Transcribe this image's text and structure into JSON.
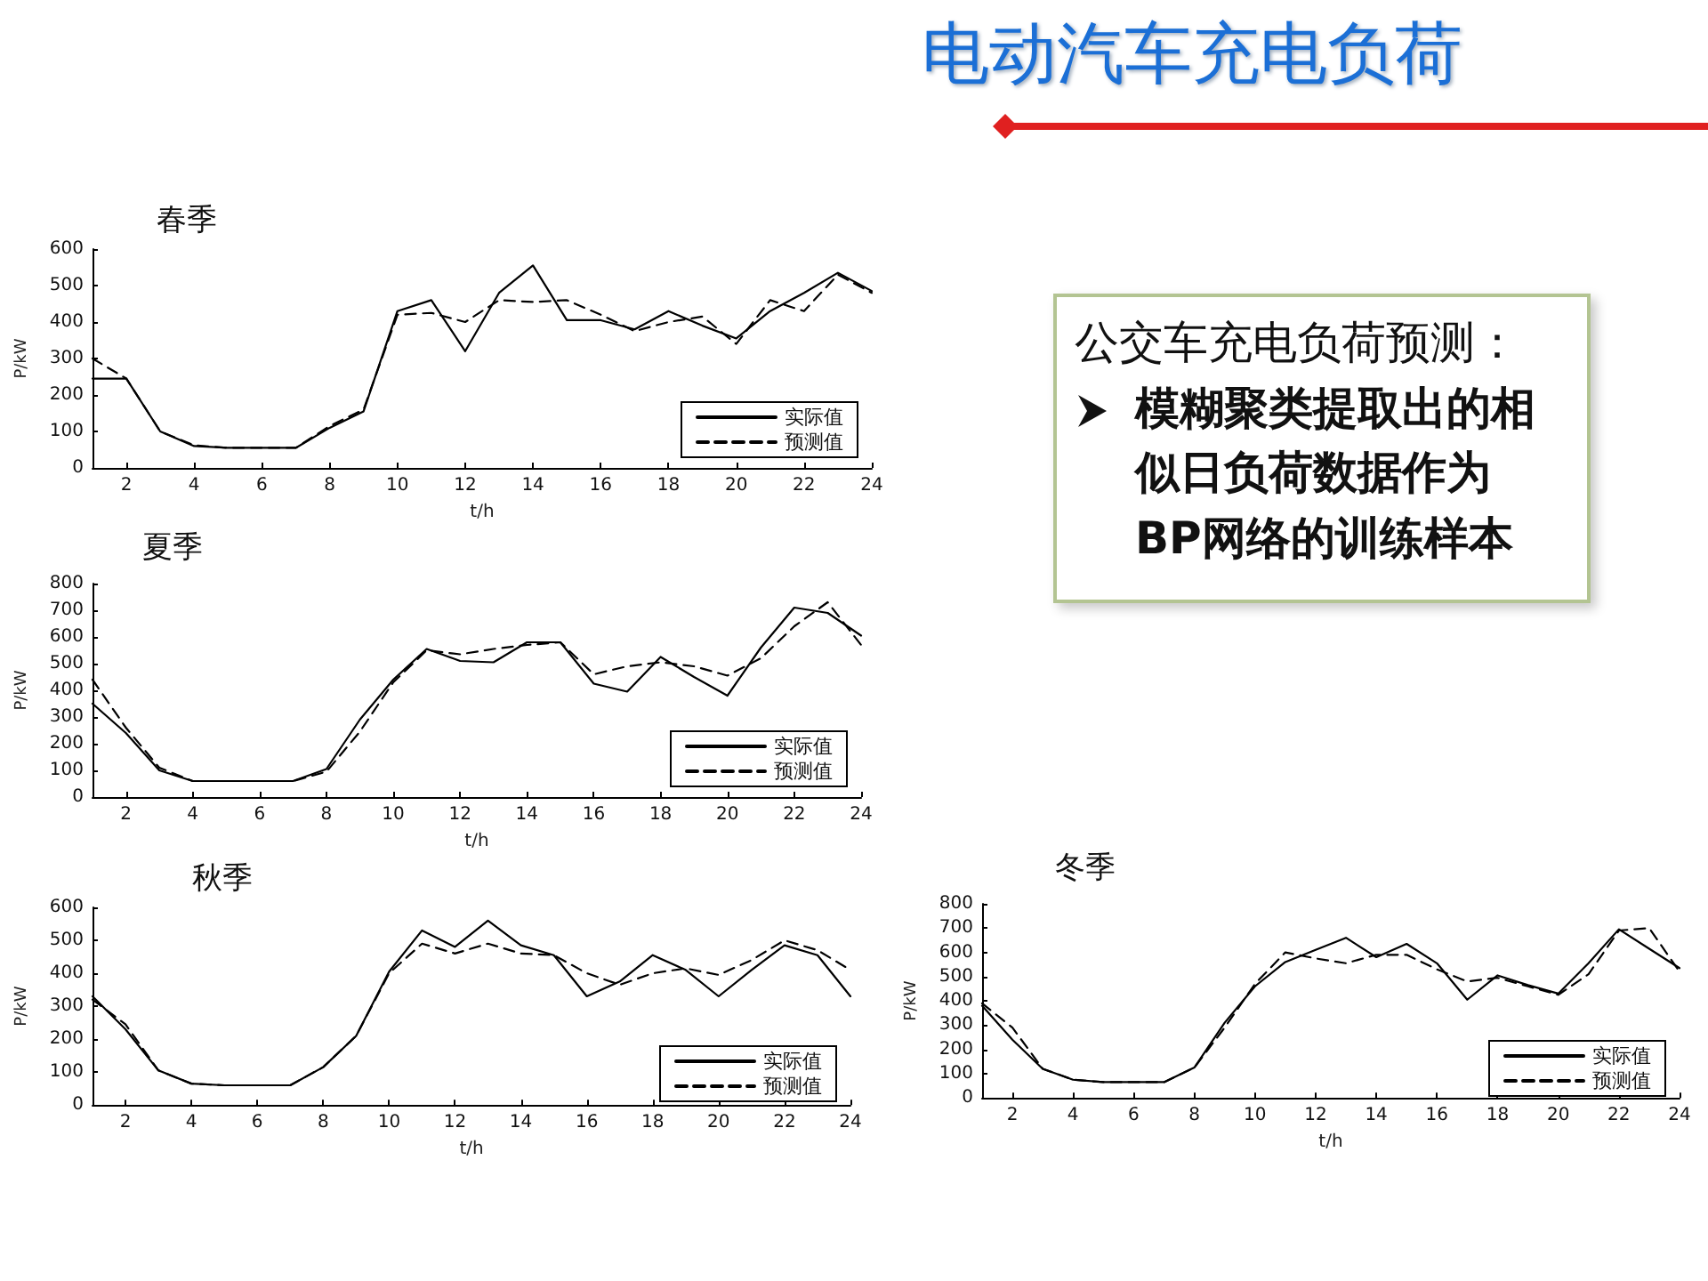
{
  "chart_data": [
    {
      "type": "other",
      "title": "电动汽车充电负荷"
    },
    {
      "type": "line",
      "title": "春季",
      "xlabel": "t/h",
      "ylabel": "P/kW",
      "x": [
        1,
        2,
        3,
        4,
        5,
        6,
        7,
        8,
        9,
        10,
        11,
        12,
        13,
        14,
        15,
        16,
        17,
        18,
        19,
        20,
        21,
        22,
        23,
        24
      ],
      "xlim": [
        1,
        24
      ],
      "xticks": [
        2,
        4,
        6,
        8,
        10,
        12,
        14,
        16,
        18,
        20,
        22,
        24
      ],
      "ylim": [
        0,
        600
      ],
      "yticks": [
        0,
        100,
        200,
        300,
        400,
        500,
        600
      ],
      "grid": false,
      "legend": "bottom right",
      "marker": "none",
      "series": [
        {
          "name": "实际值",
          "color": "#000000",
          "line_style": "solid",
          "values": [
            245,
            245,
            100,
            60,
            55,
            55,
            55,
            110,
            155,
            430,
            460,
            320,
            480,
            555,
            405,
            405,
            380,
            430,
            390,
            355,
            430,
            480,
            535,
            485
          ]
        },
        {
          "name": "预测值",
          "color": "#000000",
          "line_style": "dashed",
          "values": [
            300,
            245,
            100,
            62,
            55,
            55,
            55,
            115,
            160,
            420,
            425,
            400,
            460,
            455,
            460,
            420,
            375,
            400,
            415,
            340,
            460,
            430,
            530,
            480
          ]
        }
      ]
    },
    {
      "type": "other",
      "title": "公交车充电负荷预测：",
      "annotations": [
        "模糊聚类提取出的相似日负荷数据作为BP网络的训练样本"
      ]
    },
    {
      "type": "line",
      "title": "夏季",
      "xlabel": "t/h",
      "ylabel": "P/kW",
      "x": [
        1,
        2,
        3,
        4,
        5,
        6,
        7,
        8,
        9,
        10,
        11,
        12,
        13,
        14,
        15,
        16,
        17,
        18,
        19,
        20,
        21,
        22,
        23,
        24
      ],
      "xlim": [
        1,
        24
      ],
      "xticks": [
        2,
        4,
        6,
        8,
        10,
        12,
        14,
        16,
        18,
        20,
        22,
        24
      ],
      "ylim": [
        0,
        800
      ],
      "yticks": [
        0,
        100,
        200,
        300,
        400,
        500,
        600,
        700,
        800
      ],
      "grid": false,
      "legend": "bottom right",
      "marker": "none",
      "series": [
        {
          "name": "实际值",
          "color": "#000000",
          "line_style": "solid",
          "values": [
            350,
            240,
            100,
            60,
            60,
            60,
            60,
            105,
            290,
            440,
            555,
            510,
            505,
            580,
            580,
            425,
            395,
            525,
            450,
            380,
            560,
            710,
            690,
            605
          ]
        },
        {
          "name": "预测值",
          "color": "#000000",
          "line_style": "dashed",
          "values": [
            440,
            260,
            110,
            60,
            60,
            60,
            60,
            95,
            245,
            430,
            550,
            535,
            555,
            570,
            580,
            460,
            490,
            505,
            490,
            455,
            520,
            640,
            730,
            570
          ]
        }
      ]
    },
    {
      "type": "line",
      "title": "秋季",
      "xlabel": "t/h",
      "ylabel": "P/kW",
      "x": [
        1,
        2,
        3,
        4,
        5,
        6,
        7,
        8,
        9,
        10,
        11,
        12,
        13,
        14,
        15,
        16,
        17,
        18,
        19,
        20,
        21,
        22,
        23,
        24
      ],
      "xlim": [
        1,
        24
      ],
      "xticks": [
        2,
        4,
        6,
        8,
        10,
        12,
        14,
        16,
        18,
        20,
        22,
        24
      ],
      "ylim": [
        0,
        600
      ],
      "yticks": [
        0,
        100,
        200,
        300,
        400,
        500,
        600
      ],
      "grid": false,
      "legend": "bottom right",
      "marker": "none",
      "series": [
        {
          "name": "实际值",
          "color": "#000000",
          "line_style": "solid",
          "values": [
            330,
            230,
            105,
            65,
            60,
            60,
            60,
            115,
            210,
            405,
            530,
            480,
            560,
            485,
            455,
            330,
            375,
            455,
            410,
            330,
            410,
            485,
            455,
            330
          ]
        },
        {
          "name": "预测值",
          "color": "#000000",
          "line_style": "dashed",
          "values": [
            320,
            245,
            105,
            65,
            60,
            60,
            60,
            115,
            210,
            400,
            490,
            460,
            490,
            460,
            455,
            400,
            365,
            400,
            415,
            395,
            440,
            500,
            470,
            410
          ]
        }
      ]
    },
    {
      "type": "line",
      "title": "冬季",
      "xlabel": "t/h",
      "ylabel": "P/kW",
      "x": [
        1,
        2,
        3,
        4,
        5,
        6,
        7,
        8,
        9,
        10,
        11,
        12,
        13,
        14,
        15,
        16,
        17,
        18,
        19,
        20,
        21,
        22,
        23,
        24
      ],
      "xlim": [
        1,
        24
      ],
      "xticks": [
        2,
        4,
        6,
        8,
        10,
        12,
        14,
        16,
        18,
        20,
        22,
        24
      ],
      "ylim": [
        0,
        800
      ],
      "yticks": [
        0,
        100,
        200,
        300,
        400,
        500,
        600,
        700,
        800
      ],
      "grid": false,
      "legend": "bottom right",
      "marker": "none",
      "series": [
        {
          "name": "实际值",
          "color": "#000000",
          "line_style": "solid",
          "values": [
            380,
            240,
            120,
            75,
            65,
            65,
            65,
            125,
            310,
            460,
            560,
            610,
            660,
            580,
            635,
            555,
            405,
            505,
            465,
            430,
            555,
            695,
            615,
            535
          ]
        },
        {
          "name": "预测值",
          "color": "#000000",
          "line_style": "dashed",
          "values": [
            390,
            290,
            120,
            75,
            65,
            65,
            65,
            125,
            290,
            470,
            600,
            575,
            555,
            590,
            590,
            530,
            480,
            495,
            460,
            425,
            510,
            690,
            700,
            520
          ]
        }
      ]
    }
  ]
}
